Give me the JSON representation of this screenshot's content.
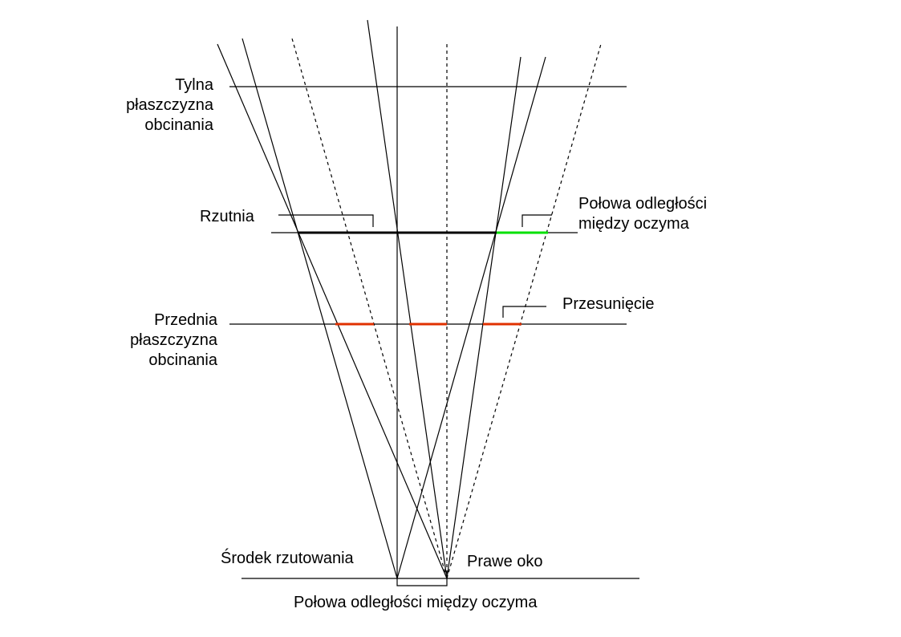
{
  "labels": {
    "back_clip_line1": "Tylna",
    "back_clip_line2": "płaszczyzna",
    "back_clip_line3": "obcinania",
    "projection_plane": "Rzutnia",
    "half_eye_line1": "Połowa odległości",
    "half_eye_line2": "między oczyma",
    "shift": "Przesunięcie",
    "front_clip_line1": "Przednia",
    "front_clip_line2": "płaszczyzna",
    "front_clip_line3": "obcinania",
    "center_of_projection": "Środek rzutowania",
    "right_eye": "Prawe oko",
    "half_eye_bottom": "Połowa odległości między oczyma"
  },
  "colors": {
    "line": "#000000",
    "eye_separation_highlight": "#00e000",
    "shift_highlight": "#e03000"
  }
}
